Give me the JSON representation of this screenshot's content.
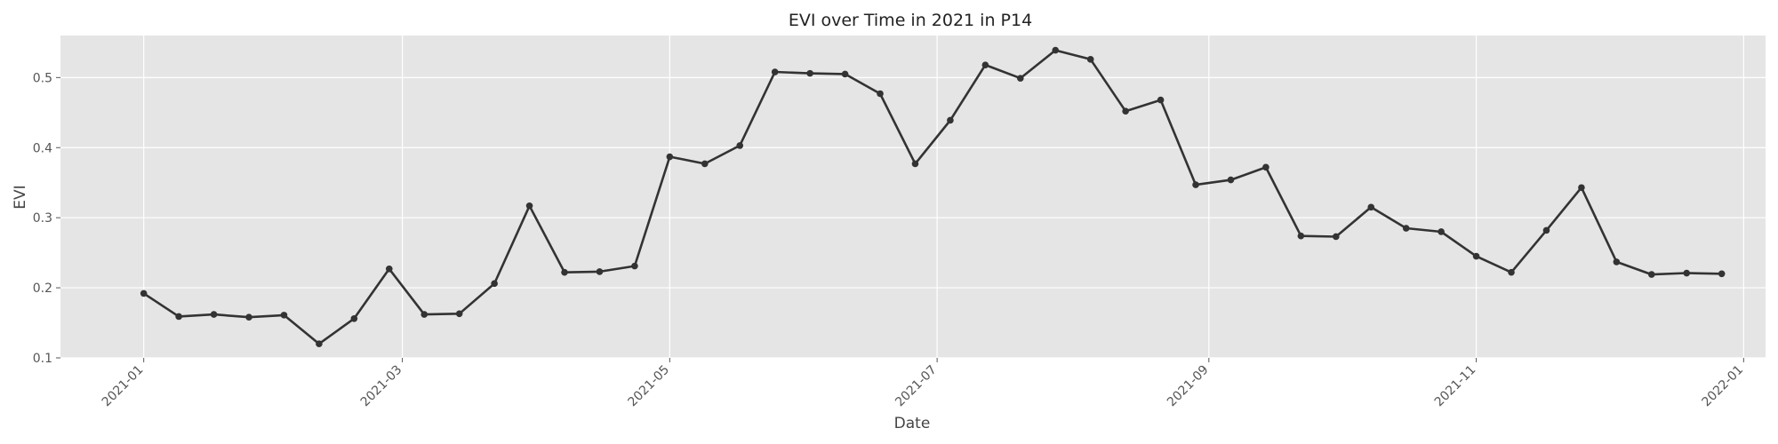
{
  "chart_data": {
    "type": "line",
    "title": "EVI over Time in 2021 in P14",
    "xlabel": "Date",
    "ylabel": "EVI",
    "ylim": [
      0.1,
      0.56
    ],
    "xlim": [
      "2020-12-13",
      "2022-01-06"
    ],
    "grid": true,
    "background": "#e5e5e5",
    "line_color": "#333333",
    "x_ticks": [
      "2021-01",
      "2021-03",
      "2021-05",
      "2021-07",
      "2021-09",
      "2021-11",
      "2022-01"
    ],
    "x_tick_dates": [
      "2021-01-01",
      "2021-03-01",
      "2021-05-01",
      "2021-07-01",
      "2021-09-01",
      "2021-11-01",
      "2022-01-01"
    ],
    "y_ticks": [
      0.1,
      0.2,
      0.3,
      0.4,
      0.5
    ],
    "x": [
      "2021-01-01",
      "2021-01-09",
      "2021-01-17",
      "2021-01-25",
      "2021-02-02",
      "2021-02-10",
      "2021-02-18",
      "2021-02-26",
      "2021-03-06",
      "2021-03-14",
      "2021-03-22",
      "2021-03-30",
      "2021-04-07",
      "2021-04-15",
      "2021-04-23",
      "2021-05-01",
      "2021-05-09",
      "2021-05-17",
      "2021-05-25",
      "2021-06-02",
      "2021-06-10",
      "2021-06-18",
      "2021-06-26",
      "2021-07-04",
      "2021-07-12",
      "2021-07-20",
      "2021-07-28",
      "2021-08-05",
      "2021-08-13",
      "2021-08-21",
      "2021-08-29",
      "2021-09-06",
      "2021-09-14",
      "2021-09-22",
      "2021-09-30",
      "2021-10-08",
      "2021-10-16",
      "2021-10-24",
      "2021-11-01",
      "2021-11-09",
      "2021-11-17",
      "2021-11-25",
      "2021-12-03",
      "2021-12-11",
      "2021-12-19",
      "2021-12-27"
    ],
    "series": [
      {
        "values": [
          0.192,
          0.159,
          0.162,
          0.158,
          0.161,
          0.12,
          0.156,
          0.227,
          0.162,
          0.163,
          0.206,
          0.317,
          0.222,
          0.223,
          0.231,
          0.387,
          0.377,
          0.403,
          0.508,
          0.506,
          0.505,
          0.477,
          0.377,
          0.439,
          0.518,
          0.499,
          0.539,
          0.526,
          0.452,
          0.468,
          0.347,
          0.354,
          0.372,
          0.274,
          0.273,
          0.315,
          0.285,
          0.28,
          0.245,
          0.222,
          0.282,
          0.343,
          0.237,
          0.219,
          0.221,
          0.22
        ]
      }
    ]
  }
}
